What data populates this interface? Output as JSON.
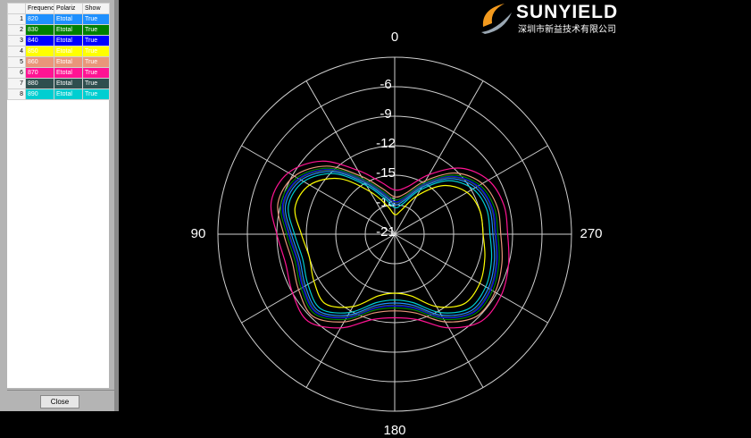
{
  "chart_data": {
    "type": "polar",
    "theta": [
      0,
      15,
      30,
      45,
      60,
      75,
      90,
      105,
      120,
      135,
      150,
      165,
      180,
      195,
      210,
      225,
      240,
      255,
      270,
      285,
      300,
      315,
      330,
      345
    ],
    "rlim": [
      -21,
      -3
    ],
    "rticks": [
      -21,
      -18,
      -15,
      -12,
      -9,
      -6
    ],
    "angle_ticks": [
      0,
      90,
      180,
      270
    ],
    "angle_grid": [
      0,
      30,
      60,
      90,
      120,
      150,
      180,
      210,
      240,
      270,
      300,
      330
    ],
    "series": [
      {
        "name": "820",
        "color": "#1e90ff",
        "values": [
          -18,
          -17,
          -15,
          -12,
          -10,
          -9.5,
          -10.5,
          -11,
          -10.5,
          -10,
          -11.5,
          -13.5,
          -14,
          -13.5,
          -11.5,
          -10,
          -10,
          -10.5,
          -11,
          -11,
          -11.5,
          -13,
          -15.5,
          -17.5
        ]
      },
      {
        "name": "830",
        "color": "#008000",
        "values": [
          -17.5,
          -16.5,
          -14.5,
          -11.5,
          -9.5,
          -9,
          -10,
          -10.5,
          -10,
          -9.5,
          -11,
          -13,
          -13.5,
          -13,
          -11,
          -9.5,
          -9.5,
          -10,
          -10.5,
          -10.5,
          -11,
          -12.5,
          -15,
          -17
        ]
      },
      {
        "name": "840",
        "color": "#0000ff",
        "values": [
          -17.7,
          -16.7,
          -14.7,
          -11.7,
          -9.7,
          -9.2,
          -10.2,
          -10.7,
          -10.2,
          -9.7,
          -11.2,
          -13.2,
          -13.7,
          -13.2,
          -11.2,
          -9.7,
          -9.7,
          -10.2,
          -10.7,
          -10.7,
          -11.2,
          -12.7,
          -15.2,
          -17.2
        ]
      },
      {
        "name": "850",
        "color": "#ffff00",
        "values": [
          -19,
          -18,
          -16,
          -13,
          -11,
          -10.5,
          -11.5,
          -12,
          -11.5,
          -11,
          -12.5,
          -14.5,
          -15,
          -14.5,
          -12.5,
          -11,
          -11,
          -11.5,
          -12,
          -12,
          -12.5,
          -14,
          -16.5,
          -18.5
        ]
      },
      {
        "name": "860",
        "color": "#e9967a",
        "values": [
          -17.2,
          -16.2,
          -14.2,
          -11.2,
          -9.2,
          -8.7,
          -9.7,
          -10.2,
          -9.7,
          -9.2,
          -10.7,
          -12.7,
          -13.2,
          -12.7,
          -10.7,
          -9.2,
          -9.2,
          -9.7,
          -10.2,
          -10.2,
          -10.7,
          -12.2,
          -14.7,
          -16.7
        ]
      },
      {
        "name": "870",
        "color": "#ff1493",
        "values": [
          -16.5,
          -15.5,
          -13.5,
          -10.5,
          -8.5,
          -8,
          -9,
          -9.5,
          -9,
          -8.5,
          -10,
          -12,
          -12.5,
          -12,
          -10,
          -8.5,
          -8.5,
          -9,
          -9.5,
          -9.5,
          -10,
          -11.5,
          -14,
          -16
        ]
      },
      {
        "name": "880",
        "color": "#2f4f4f",
        "values": [
          -17.8,
          -16.8,
          -14.8,
          -11.8,
          -9.8,
          -9.3,
          -10.3,
          -10.8,
          -10.3,
          -9.8,
          -11.3,
          -13.3,
          -13.8,
          -13.3,
          -11.3,
          -9.8,
          -9.8,
          -10.3,
          -10.8,
          -10.8,
          -11.3,
          -12.8,
          -15.3,
          -17.3
        ]
      },
      {
        "name": "890",
        "color": "#00ced1",
        "values": [
          -18.3,
          -17.3,
          -15.3,
          -12.3,
          -10.3,
          -9.8,
          -10.8,
          -11.3,
          -10.8,
          -10.3,
          -11.8,
          -13.8,
          -14.3,
          -13.8,
          -11.8,
          -10.3,
          -10.3,
          -10.8,
          -11.3,
          -11.3,
          -11.8,
          -13.3,
          -15.8,
          -17.8
        ]
      }
    ]
  },
  "table": {
    "header": [
      "Frequenc",
      "Polariz",
      "Show"
    ],
    "rows": [
      [
        "1",
        "Etotal",
        "True"
      ],
      [
        "2",
        "Etotal",
        "True"
      ],
      [
        "3",
        "Etotal",
        "True"
      ],
      [
        "4",
        "Etotal",
        "True"
      ],
      [
        "5",
        "Etotal",
        "True"
      ],
      [
        "6",
        "Etotal",
        "True"
      ],
      [
        "7",
        "Etotal",
        "True"
      ],
      [
        "8",
        "Etotal",
        "True"
      ]
    ]
  },
  "button": "Close",
  "logo": {
    "brand": "SUNYIELD",
    "company": "深圳市新益技术有限公司"
  }
}
